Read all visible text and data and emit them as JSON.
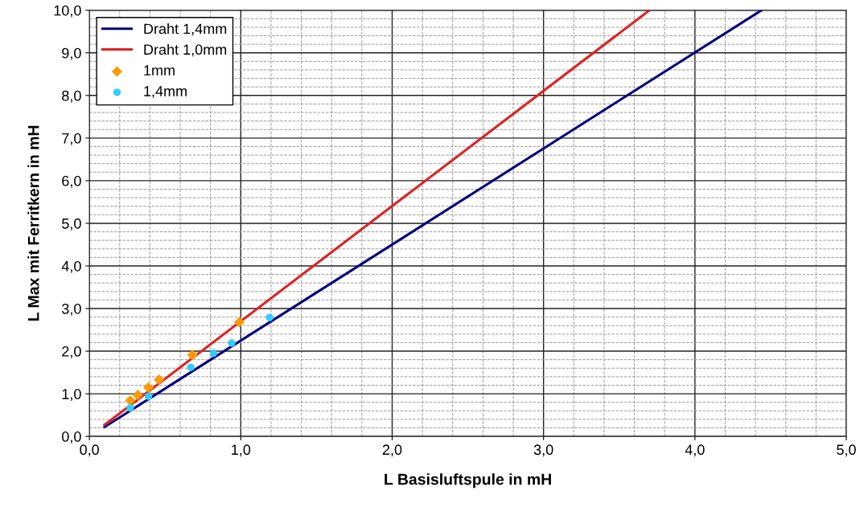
{
  "chart_data": {
    "type": "line",
    "xlabel": "L Basisluftspule in mH",
    "ylabel": "L Max mit Ferritkern in mH",
    "xlim": [
      0,
      5
    ],
    "ylim": [
      0,
      10
    ],
    "xticks": [
      {
        "value": 0,
        "label": "0,0"
      },
      {
        "value": 1,
        "label": "1,0"
      },
      {
        "value": 2,
        "label": "2,0"
      },
      {
        "value": 3,
        "label": "3,0"
      },
      {
        "value": 4,
        "label": "4,0"
      },
      {
        "value": 5,
        "label": "5,0"
      }
    ],
    "yticks": [
      {
        "value": 0,
        "label": "0,0"
      },
      {
        "value": 1,
        "label": "1,0"
      },
      {
        "value": 2,
        "label": "2,0"
      },
      {
        "value": 3,
        "label": "3,0"
      },
      {
        "value": 4,
        "label": "4,0"
      },
      {
        "value": 5,
        "label": "5,0"
      },
      {
        "value": 6,
        "label": "6,0"
      },
      {
        "value": 7,
        "label": "7,0"
      },
      {
        "value": 8,
        "label": "8,0"
      },
      {
        "value": 9,
        "label": "9,0"
      },
      {
        "value": 10,
        "label": "10,0"
      }
    ],
    "grid": true,
    "legend": "top left",
    "series": [
      {
        "name": "Draht 1,4mm",
        "color": "#000080",
        "marker": "none",
        "x": [
          0.1,
          4.44
        ],
        "values": [
          0.22,
          10.0
        ]
      },
      {
        "name": "Draht 1,0mm",
        "color": "#e02020",
        "marker": "none",
        "x": [
          0.1,
          3.7
        ],
        "values": [
          0.27,
          10.0
        ]
      },
      {
        "name": "1mm",
        "color": "#ff9900",
        "type": "scatter",
        "marker": "diamond",
        "x": [
          0.27,
          0.32,
          0.39,
          0.46,
          0.68,
          0.99
        ],
        "values": [
          0.84,
          0.97,
          1.15,
          1.33,
          1.91,
          2.68
        ]
      },
      {
        "name": "1,4mm",
        "color": "#33ccff",
        "type": "scatter",
        "marker": "circle",
        "x": [
          0.27,
          0.39,
          0.67,
          0.82,
          0.94,
          1.19
        ],
        "values": [
          0.67,
          0.94,
          1.62,
          1.95,
          2.19,
          2.79
        ]
      }
    ]
  }
}
